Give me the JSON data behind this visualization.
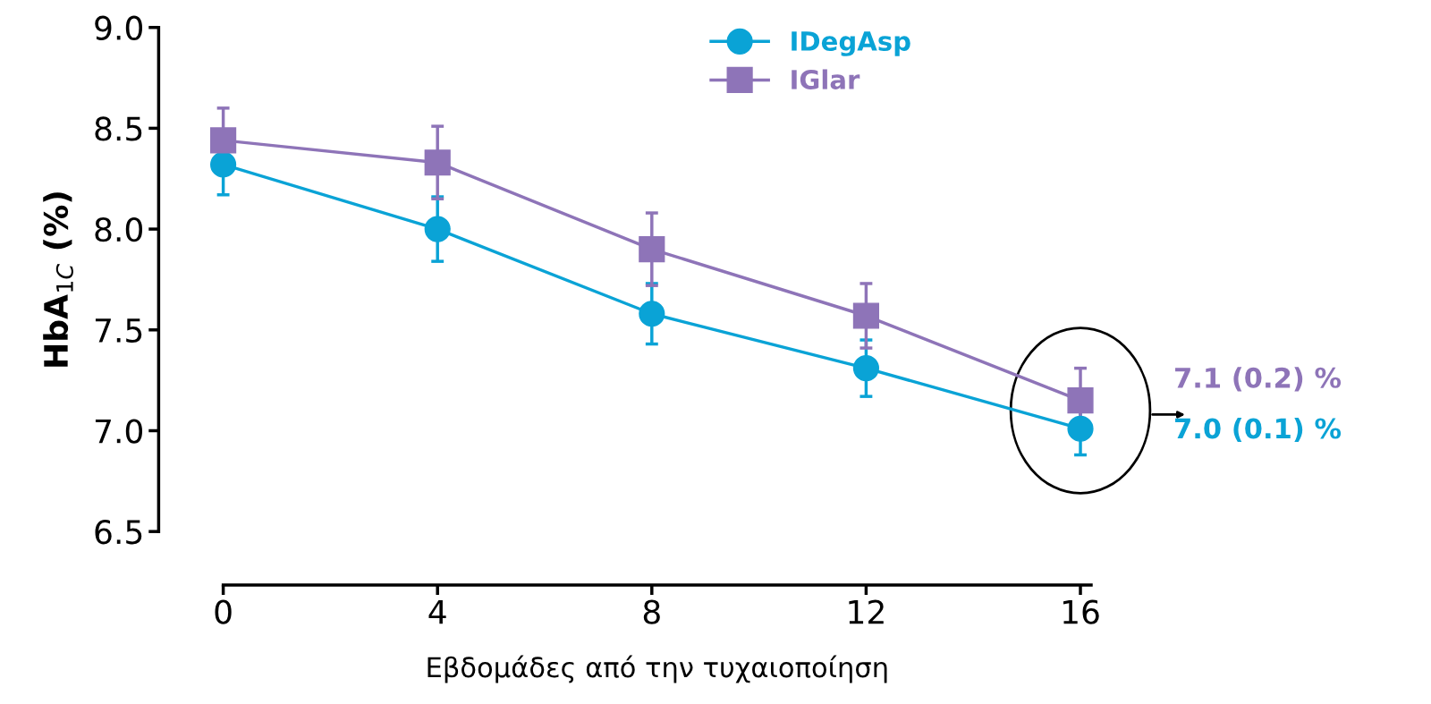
{
  "chart_data": {
    "type": "line",
    "xlabel": "Εβδομάδες από την τυχαιοποίηση",
    "ylabel": "HbA$_{1C}$ (%)",
    "x": [
      0,
      4,
      8,
      12,
      16
    ],
    "series": [
      {
        "name": "IDegAsp",
        "color": "#0aa3d6",
        "values": [
          8.32,
          8.0,
          7.58,
          7.31,
          7.01
        ],
        "errors": [
          0.15,
          0.16,
          0.15,
          0.14,
          0.13
        ],
        "marker": "circle"
      },
      {
        "name": "IGlar",
        "color": "#8e74b8",
        "values": [
          8.44,
          8.33,
          7.9,
          7.57,
          7.15
        ],
        "errors": [
          0.16,
          0.18,
          0.18,
          0.16,
          0.16
        ],
        "marker": "square"
      }
    ],
    "xlim": [
      0,
      16.2
    ],
    "xticks": [
      0,
      4,
      8,
      12,
      16
    ],
    "ylim": [
      6.5,
      9.0
    ],
    "yticks": [
      {
        "value": 6.5,
        "label": "6.5"
      },
      {
        "value": 7.0,
        "label": "7.0"
      },
      {
        "value": 7.5,
        "label": "7.5"
      },
      {
        "value": 8.0,
        "label": "8.0"
      },
      {
        "value": 8.5,
        "label": "8.5"
      },
      {
        "value": 9.0,
        "label": "9.0"
      }
    ],
    "grid": false,
    "legend": "top right",
    "line_style": "solid",
    "annotations": [
      "7.1 (0.2) %",
      "7.0 (0.1) %"
    ]
  }
}
